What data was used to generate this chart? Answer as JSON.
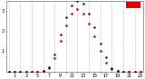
{
  "hours": [
    0,
    1,
    2,
    3,
    4,
    5,
    6,
    7,
    8,
    9,
    10,
    11,
    12,
    13,
    14,
    15,
    16,
    17,
    18,
    19,
    20,
    21,
    22,
    23
  ],
  "solar_avg": [
    0,
    0,
    0,
    0,
    0,
    0,
    2,
    15,
    65,
    150,
    230,
    290,
    310,
    290,
    240,
    175,
    100,
    45,
    10,
    2,
    0,
    0,
    0,
    0
  ],
  "solar_max": [
    0,
    0,
    0,
    0,
    0,
    0,
    3,
    20,
    85,
    185,
    270,
    330,
    350,
    340,
    290,
    220,
    140,
    70,
    18,
    4,
    0,
    0,
    0,
    0
  ],
  "ylim": [
    0,
    350
  ],
  "bg_color": "#ffffff",
  "plot_bg": "#ffffff",
  "avg_color": "#dd0000",
  "max_color": "#000000",
  "grid_color": "#bbbbbb",
  "legend_color": "#dd0000",
  "tick_fontsize": 3.5,
  "ylabel_vals": [
    "1",
    "2",
    "3"
  ],
  "xlabel_step": 2
}
